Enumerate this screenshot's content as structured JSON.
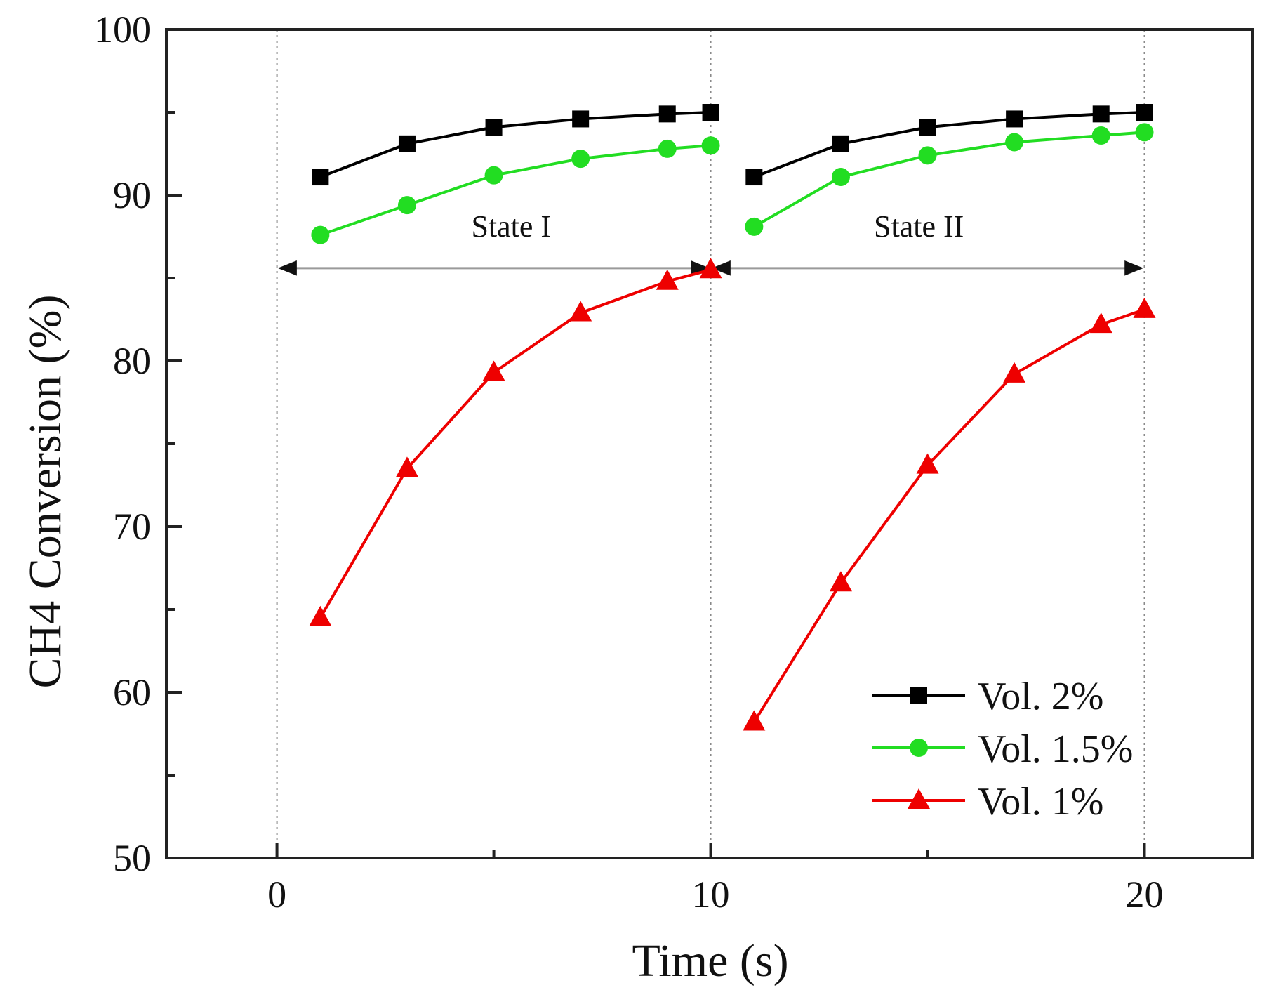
{
  "chart_data": {
    "type": "line",
    "title": "",
    "xlabel": "Time (s)",
    "ylabel": "CH4 Conversion (%)",
    "xlim": [
      -2.55,
      22.5
    ],
    "ylim": [
      50,
      100
    ],
    "x_ticks": [
      0,
      10,
      20
    ],
    "y_ticks": [
      50,
      60,
      70,
      80,
      90,
      100
    ],
    "grid": false,
    "vertical_guides": [
      0,
      10,
      20
    ],
    "legend_position": "bottom-right",
    "annotations": [
      {
        "text": "State I",
        "x": 5.4,
        "y": 87.5,
        "arrow_from": 0,
        "arrow_to": 10,
        "arrow_y": 85.6
      },
      {
        "text": "State II",
        "x": 14.8,
        "y": 87.5,
        "arrow_from": 10,
        "arrow_to": 20,
        "arrow_y": 85.6
      }
    ],
    "series": [
      {
        "name": "Vol. 2%",
        "color": "#000000",
        "marker": "square",
        "segments": [
          {
            "x": [
              1,
              3,
              5,
              7,
              9,
              10
            ],
            "y": [
              91.1,
              93.1,
              94.1,
              94.6,
              94.9,
              95.0
            ]
          },
          {
            "x": [
              11,
              13,
              15,
              17,
              19,
              20
            ],
            "y": [
              91.1,
              93.1,
              94.1,
              94.6,
              94.9,
              95.0
            ]
          }
        ]
      },
      {
        "name": "Vol. 1.5%",
        "color": "#22dd22",
        "marker": "circle",
        "segments": [
          {
            "x": [
              1,
              3,
              5,
              7,
              9,
              10
            ],
            "y": [
              87.6,
              89.4,
              91.2,
              92.2,
              92.8,
              93.0
            ]
          },
          {
            "x": [
              11,
              13,
              15,
              17,
              19,
              20
            ],
            "y": [
              88.1,
              91.1,
              92.4,
              93.2,
              93.6,
              93.8
            ]
          }
        ]
      },
      {
        "name": "Vol. 1%",
        "color": "#ee0000",
        "marker": "triangle",
        "segments": [
          {
            "x": [
              1,
              3,
              5,
              7,
              9,
              10
            ],
            "y": [
              64.5,
              73.5,
              79.3,
              82.9,
              84.8,
              85.5
            ]
          },
          {
            "x": [
              11,
              13,
              15,
              17,
              19,
              20
            ],
            "y": [
              58.2,
              66.6,
              73.7,
              79.2,
              82.2,
              83.1
            ]
          }
        ]
      }
    ]
  }
}
